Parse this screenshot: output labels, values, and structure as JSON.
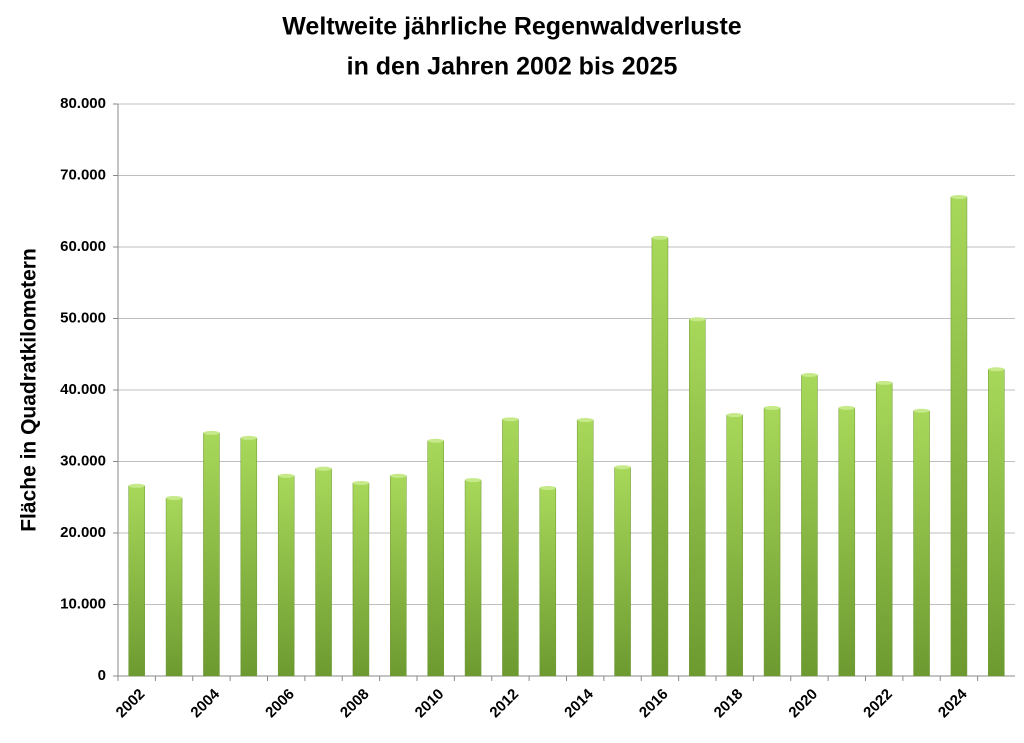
{
  "chart_data": {
    "type": "bar",
    "title": [
      "Weltweite jährliche Regenwaldverluste",
      "in den Jahren 2002 bis 2025"
    ],
    "y_label": "Fläche in Quadratkilometern",
    "categories": [
      "2002",
      null,
      "2004",
      null,
      "2006",
      null,
      "2008",
      null,
      "2010",
      null,
      "2012",
      null,
      "2014",
      null,
      "2016",
      null,
      "2018",
      null,
      "2020",
      null,
      "2022",
      null,
      "2024",
      null
    ],
    "values": [
      26600,
      24900,
      34000,
      33300,
      28000,
      29000,
      27000,
      28000,
      32900,
      27400,
      35900,
      26300,
      35800,
      29200,
      61300,
      49900,
      36500,
      37500,
      42100,
      37500,
      41000,
      37100,
      67000,
      42900
    ],
    "color": "#8cbf3f",
    "ylim": [
      0,
      80000
    ],
    "yticks": [
      0,
      {
        "value": 10000,
        "label": "10.000"
      },
      {
        "value": 20000,
        "label": "20.000"
      },
      {
        "value": 30000,
        "label": "30.000"
      },
      {
        "value": 40000,
        "label": "40.000"
      },
      {
        "value": 50000,
        "label": "50.000"
      },
      {
        "value": 60000,
        "label": "60.000"
      },
      {
        "value": 70000,
        "label": "70.000"
      },
      {
        "value": 80000,
        "label": "80.000"
      }
    ],
    "grid": true
  }
}
